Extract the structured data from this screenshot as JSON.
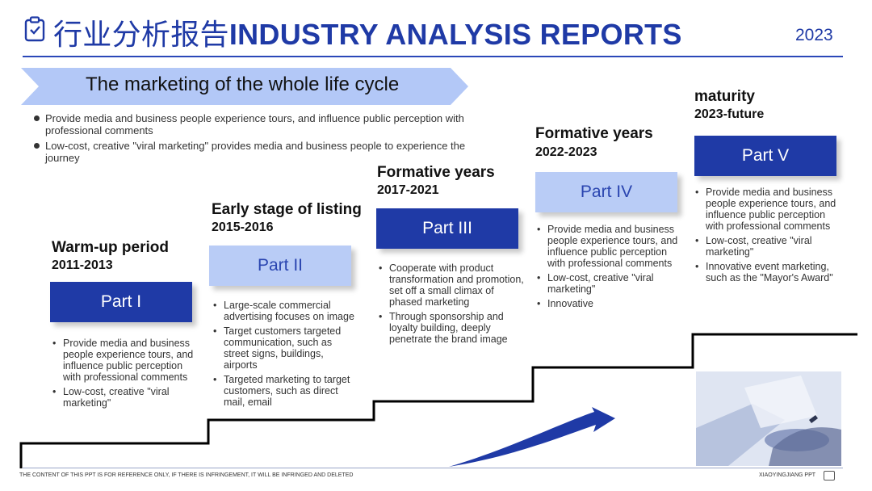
{
  "header": {
    "title_cn": "行业分析报告",
    "title_en": "INDUSTRY ANALYSIS REPORTS",
    "year": "2023"
  },
  "banner": {
    "text": "The marketing of the whole life cycle"
  },
  "intro": {
    "bullets": [
      "Provide media and business people experience tours, and influence public perception with professional comments",
      "Low-cost, creative \"viral marketing\" provides media and business people to experience the journey"
    ]
  },
  "stages": [
    {
      "title": "Warm-up period",
      "years": "2011-2013",
      "part": "Part I",
      "bullets": [
        "Provide media and business people experience tours, and influence public perception with professional comments",
        "Low-cost, creative \"viral marketing\""
      ]
    },
    {
      "title": "Early stage of listing",
      "years": "2015-2016",
      "part": "Part II",
      "bullets": [
        "Large-scale commercial advertising focuses on image",
        "Target customers targeted communication, such as street signs, buildings, airports",
        "Targeted marketing to target customers, such as direct mail, email"
      ]
    },
    {
      "title": "Formative years",
      "years": "2017-2021",
      "part": "Part III",
      "bullets": [
        "Cooperate with product transformation and promotion, set off a small climax of phased marketing",
        "Through sponsorship and loyalty building, deeply penetrate the brand image"
      ]
    },
    {
      "title": "Formative years",
      "years": "2022-2023",
      "part": "Part IV",
      "bullets": [
        "Provide media and business people experience tours, and influence public perception with professional comments",
        "Low-cost, creative \"viral marketing\"",
        "Innovative"
      ]
    },
    {
      "title": "maturity",
      "years": "2023-future",
      "part": "Part V",
      "bullets": [
        "Provide media and business people experience tours, and influence public perception with professional comments",
        "Low-cost, creative \"viral marketing\"",
        "Innovative event marketing, such as the \"Mayor's Award\""
      ]
    }
  ],
  "footer": {
    "disclaimer": "THE CONTENT OF THIS PPT IS FOR REFERENCE ONLY, IF THERE IS INFRINGEMENT, IT WILL BE INFRINGED AND DELETED",
    "brand": "XIAOYINGJIANG PPT"
  },
  "colors": {
    "primary": "#1f3aa6",
    "light": "#b9ccf6",
    "banner": "#b3c8f7"
  }
}
